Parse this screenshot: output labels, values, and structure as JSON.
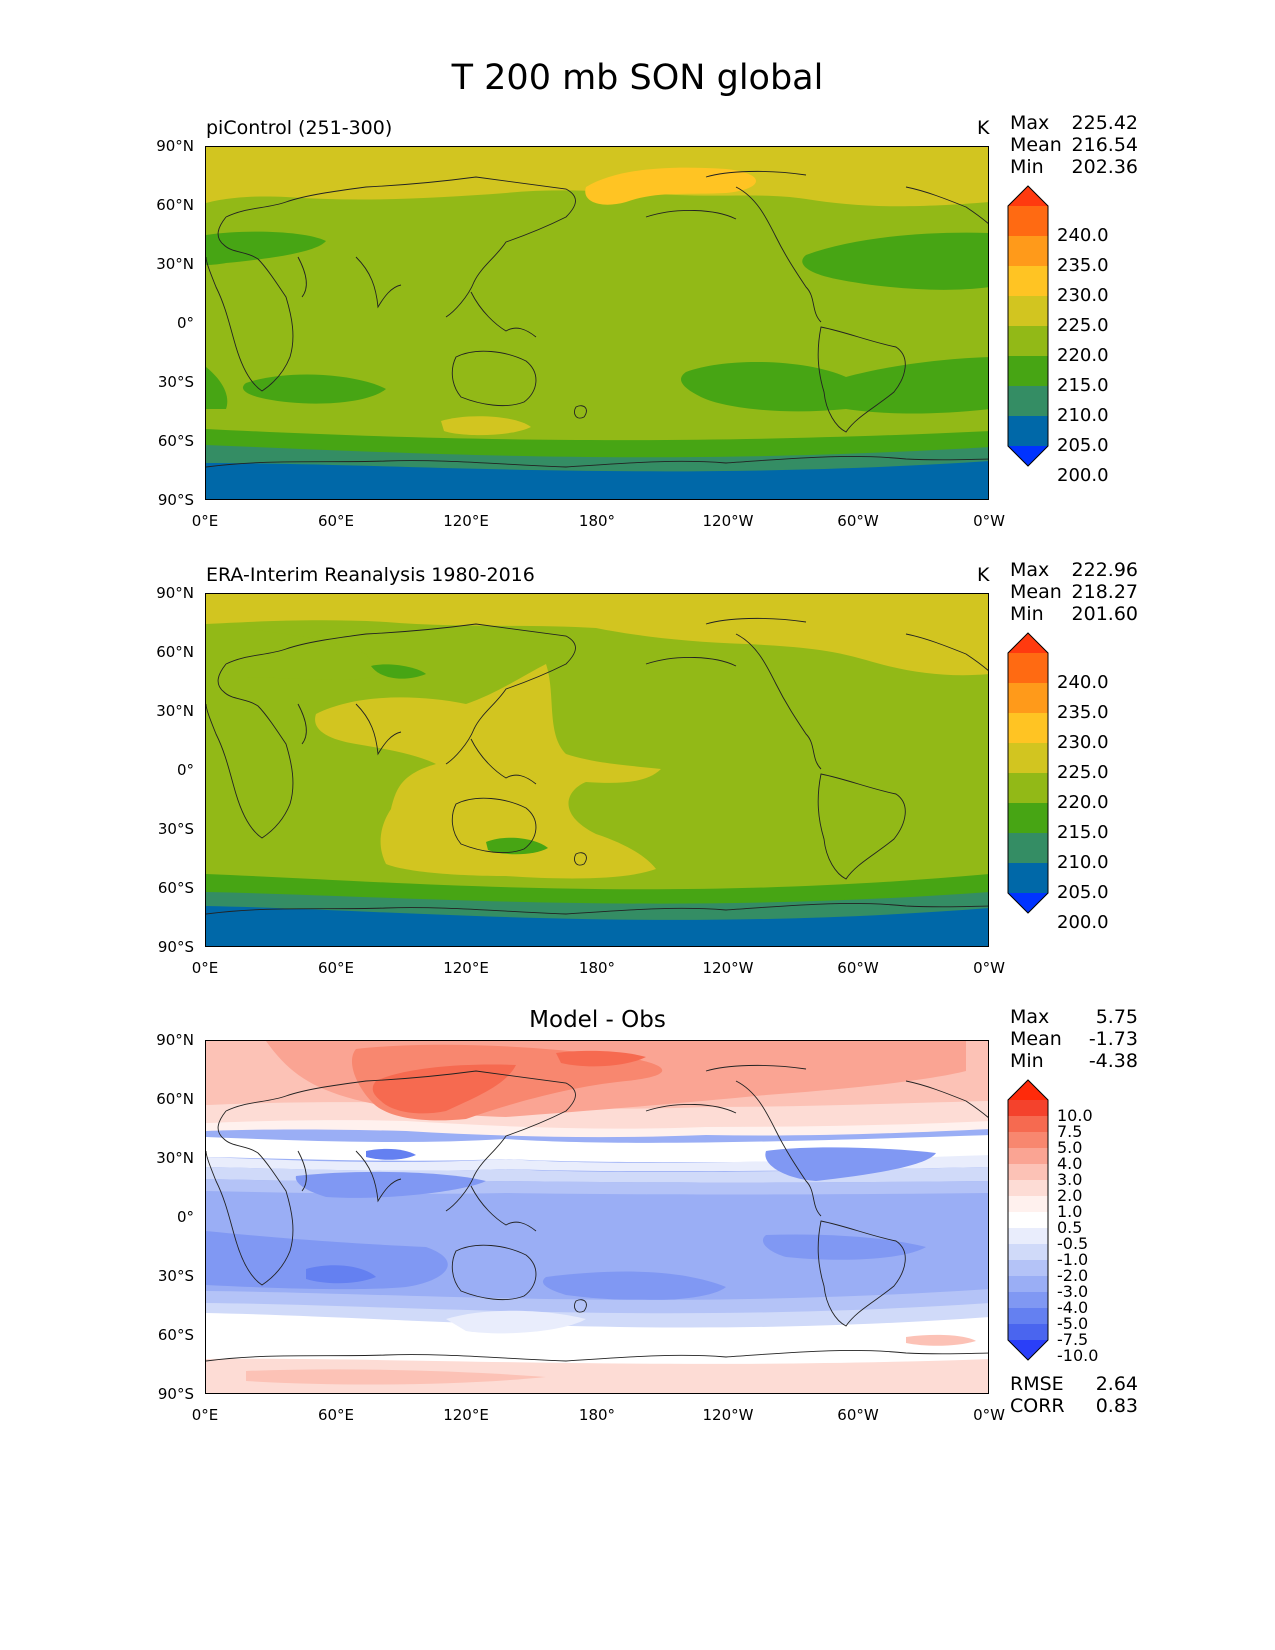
{
  "figure": {
    "title": "T 200 mb SON global",
    "x_ticks": [
      "0°E",
      "60°E",
      "120°E",
      "180°",
      "120°W",
      "60°W",
      "0°W"
    ],
    "y_ticks": [
      "90°N",
      "60°N",
      "30°N",
      "0°",
      "30°S",
      "60°S",
      "90°S"
    ]
  },
  "panels": [
    {
      "title": "piControl (251-300)",
      "unit": "K",
      "stats": {
        "max_label": "Max",
        "max": "225.42",
        "mean_label": "Mean",
        "mean": "216.54",
        "min_label": "Min",
        "min": "202.36"
      },
      "colorbar": {
        "labels": [
          "240.0",
          "235.0",
          "230.0",
          "225.0",
          "220.0",
          "215.0",
          "210.0",
          "205.0",
          "200.0"
        ],
        "colors": [
          "#ff3a0f",
          "#ff6a12",
          "#ff9a1a",
          "#ffc423",
          "#d2c520",
          "#92b917",
          "#47a514",
          "#348d64",
          "#0068a8",
          "#0033ff"
        ]
      }
    },
    {
      "title": "ERA-Interim Reanalysis 1980-2016",
      "unit": "K",
      "stats": {
        "max_label": "Max",
        "max": "222.96",
        "mean_label": "Mean",
        "mean": "218.27",
        "min_label": "Min",
        "min": "201.60"
      },
      "colorbar": {
        "labels": [
          "240.0",
          "235.0",
          "230.0",
          "225.0",
          "220.0",
          "215.0",
          "210.0",
          "205.0",
          "200.0"
        ],
        "colors": [
          "#ff3a0f",
          "#ff6a12",
          "#ff9a1a",
          "#ffc423",
          "#d2c520",
          "#92b917",
          "#47a514",
          "#348d64",
          "#0068a8",
          "#0033ff"
        ]
      }
    },
    {
      "title": "Model - Obs",
      "unit": "",
      "stats": {
        "max_label": "Max",
        "max": "5.75",
        "mean_label": "Mean",
        "mean": "-1.73",
        "min_label": "Min",
        "min": "-4.38"
      },
      "extra_stats": {
        "rmse_label": "RMSE",
        "rmse": "2.64",
        "corr_label": "CORR",
        "corr": "0.83"
      },
      "colorbar": {
        "labels": [
          "10.0",
          "7.5",
          "5.0",
          "4.0",
          "3.0",
          "2.0",
          "1.0",
          "0.5",
          "-0.5",
          "-1.0",
          "-2.0",
          "-3.0",
          "-4.0",
          "-5.0",
          "-7.5",
          "-10.0"
        ],
        "colors": [
          "#ff2a0a",
          "#f4422c",
          "#f66a50",
          "#f8876f",
          "#faa493",
          "#fcc2b6",
          "#fddcd5",
          "#fff1ee",
          "#ffffff",
          "#e9edfc",
          "#d0daf9",
          "#b4c3f7",
          "#9aaef5",
          "#8098f3",
          "#6480f1",
          "#4a65ef",
          "#2a3ff8"
        ]
      }
    }
  ]
}
